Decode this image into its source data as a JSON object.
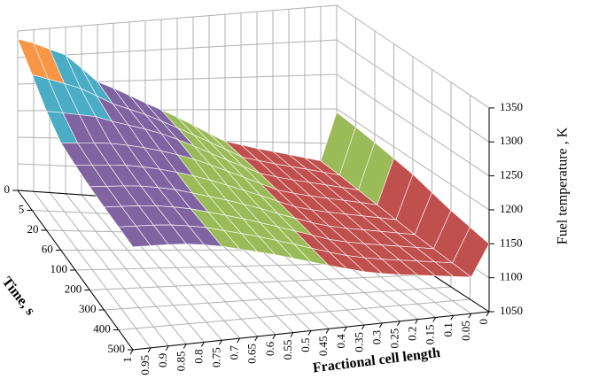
{
  "chart_data": {
    "type": "surface",
    "x_label": "Fractional cell length",
    "y_label": "Time, s",
    "z_label": "Fuel temperature , K",
    "x": [
      1,
      0.95,
      0.9,
      0.85,
      0.8,
      0.75,
      0.7,
      0.65,
      0.6,
      0.55,
      0.5,
      0.45,
      0.4,
      0.35,
      0.3,
      0.25,
      0.2,
      0.15,
      0.1,
      0.05,
      0
    ],
    "categories": [
      "0",
      "5",
      "20",
      "60",
      "100",
      "200",
      "300",
      "400",
      "500"
    ],
    "z": [
      [
        1335,
        1325,
        1312,
        1300,
        1275,
        1250,
        1238,
        1225,
        1212,
        1200,
        1188,
        1175,
        1162,
        1150,
        1145,
        1140,
        1136,
        1132,
        1128,
        1124,
        1195
      ],
      [
        1300,
        1290,
        1280,
        1270,
        1255,
        1240,
        1230,
        1220,
        1208,
        1196,
        1184,
        1172,
        1160,
        1148,
        1143,
        1138,
        1134,
        1130,
        1126,
        1122,
        1192
      ],
      [
        1265,
        1260,
        1255,
        1250,
        1240,
        1232,
        1224,
        1215,
        1204,
        1192,
        1180,
        1168,
        1157,
        1146,
        1140,
        1135,
        1131,
        1127,
        1123,
        1119,
        1188
      ],
      [
        1240,
        1238,
        1236,
        1233,
        1228,
        1222,
        1215,
        1207,
        1198,
        1187,
        1176,
        1165,
        1154,
        1143,
        1137,
        1132,
        1128,
        1124,
        1120,
        1116,
        1183
      ],
      [
        1232,
        1230,
        1228,
        1225,
        1220,
        1214,
        1207,
        1199,
        1190,
        1180,
        1170,
        1160,
        1150,
        1140,
        1134,
        1129,
        1125,
        1121,
        1117,
        1113,
        1178
      ],
      [
        1226,
        1224,
        1222,
        1219,
        1214,
        1208,
        1200,
        1192,
        1184,
        1175,
        1166,
        1156,
        1147,
        1138,
        1131,
        1126,
        1122,
        1118,
        1114,
        1110,
        1170
      ],
      [
        1222,
        1220,
        1218,
        1215,
        1210,
        1204,
        1196,
        1188,
        1180,
        1171,
        1162,
        1153,
        1144,
        1135,
        1129,
        1124,
        1120,
        1116,
        1112,
        1108,
        1162
      ],
      [
        1219,
        1217,
        1215,
        1212,
        1207,
        1201,
        1193,
        1185,
        1177,
        1168,
        1159,
        1150,
        1141,
        1133,
        1127,
        1122,
        1118,
        1114,
        1110,
        1106,
        1156
      ],
      [
        1216,
        1214,
        1212,
        1209,
        1204,
        1198,
        1190,
        1182,
        1174,
        1165,
        1156,
        1147,
        1139,
        1131,
        1125,
        1120,
        1116,
        1112,
        1108,
        1104,
        1150
      ]
    ],
    "xlim": [
      1,
      0
    ],
    "xticks": [
      1,
      0.95,
      0.9,
      0.85,
      0.8,
      0.75,
      0.7,
      0.65,
      0.6,
      0.55,
      0.5,
      0.45,
      0.4,
      0.35,
      0.3,
      0.25,
      0.2,
      0.15,
      0.1,
      0.05,
      0
    ],
    "zlim": [
      1050,
      1350
    ],
    "zticks": [
      1050,
      1100,
      1150,
      1200,
      1250,
      1300,
      1350
    ],
    "band_colors": [
      "#632523",
      "#c0504d",
      "#9bbb59",
      "#8064a2",
      "#4bacc6",
      "#f79646"
    ],
    "grid": true
  }
}
